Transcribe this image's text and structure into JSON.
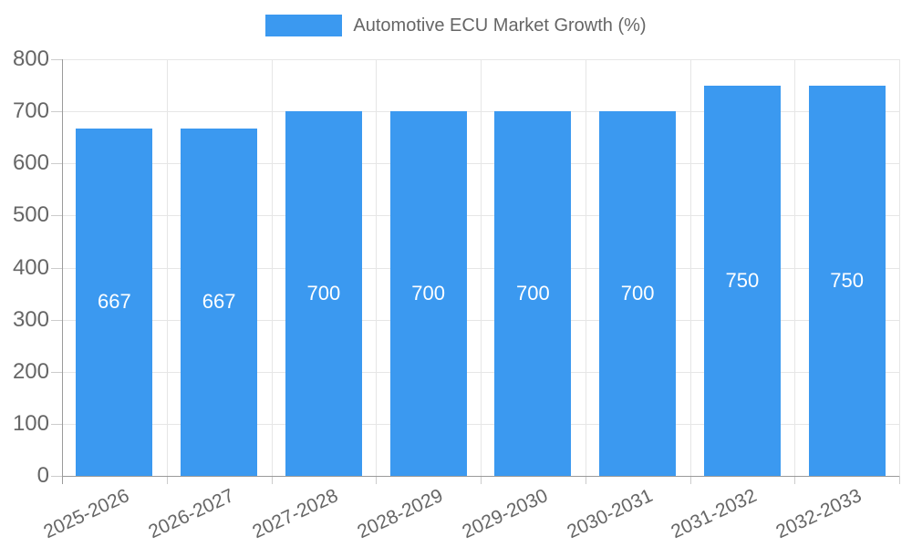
{
  "chart_data": {
    "type": "bar",
    "title": "Automotive ECU Market Growth (%)",
    "categories": [
      "2025-2026",
      "2026-2027",
      "2027-2028",
      "2028-2029",
      "2029-2030",
      "2030-2031",
      "2031-2032",
      "2032-2033"
    ],
    "values": [
      667,
      667,
      700,
      700,
      700,
      700,
      750,
      750
    ],
    "bar_value_labels": [
      "667",
      "667",
      "700",
      "700",
      "700",
      "700",
      "750",
      "750"
    ],
    "yticks": [
      0,
      100,
      200,
      300,
      400,
      500,
      600,
      700,
      800
    ],
    "ylim": [
      0,
      800
    ],
    "xlabel": "",
    "ylabel": "",
    "grid": true,
    "legend": {
      "position": "top",
      "label": "Automotive ECU Market Growth (%)"
    },
    "colors": {
      "bar": "#3B99F0",
      "bar_value_label": "#FFFFFF",
      "axis_text": "#666666",
      "grid_line": "#E6E6E6",
      "axis_line": "#9A9A9A",
      "tick_mark": "#CCCCCC",
      "background": "#FFFFFF"
    }
  }
}
